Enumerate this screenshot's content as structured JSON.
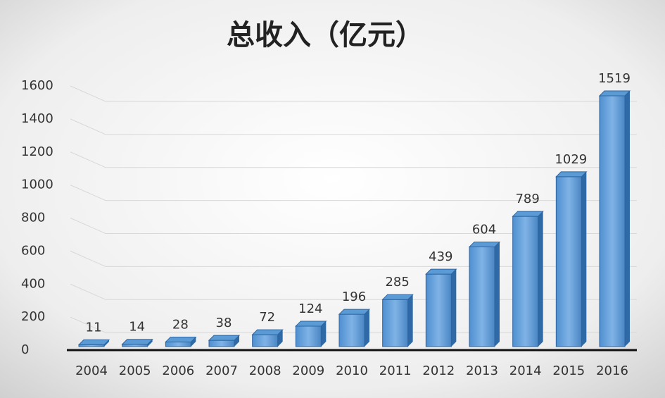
{
  "chart_data": {
    "type": "bar",
    "title": "总收入（亿元）",
    "categories": [
      "2004",
      "2005",
      "2006",
      "2007",
      "2008",
      "2009",
      "2010",
      "2011",
      "2012",
      "2013",
      "2014",
      "2015",
      "2016"
    ],
    "values": [
      11,
      14,
      28,
      38,
      72,
      124,
      196,
      285,
      439,
      604,
      789,
      1029,
      1519
    ],
    "color": "#5b9bd5",
    "ylim": [
      0,
      1600
    ],
    "yticks": [
      0,
      200,
      400,
      600,
      800,
      1000,
      1200,
      1400,
      1600
    ],
    "grid": true
  }
}
